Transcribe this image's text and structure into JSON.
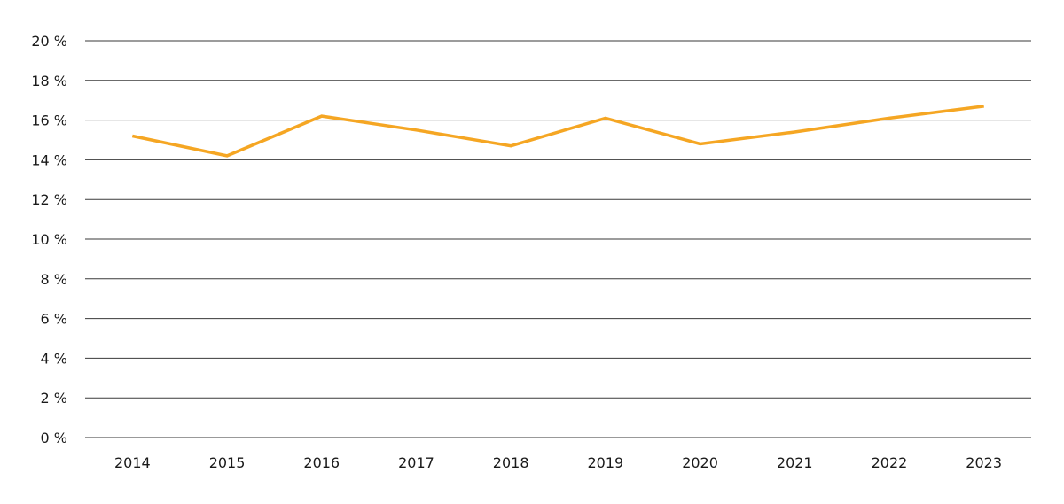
{
  "chart_data": {
    "type": "line",
    "title": "",
    "xlabel": "",
    "ylabel": "",
    "categories": [
      "2014",
      "2015",
      "2016",
      "2017",
      "2018",
      "2019",
      "2020",
      "2021",
      "2022",
      "2023"
    ],
    "series": [
      {
        "name": "",
        "color": "#F5A623",
        "values": [
          15.2,
          14.2,
          16.2,
          15.5,
          14.7,
          16.1,
          14.8,
          15.4,
          16.1,
          16.7
        ]
      }
    ],
    "ylim": [
      0,
      20
    ],
    "yticks": [
      0,
      2,
      4,
      6,
      8,
      10,
      12,
      14,
      16,
      18,
      20
    ],
    "ytick_labels": [
      "0 %",
      "2 %",
      "4 %",
      "6 %",
      "8 %",
      "10 %",
      "12 %",
      "14 %",
      "16 %",
      "18 %",
      "20 %"
    ],
    "grid": true,
    "legend": "none"
  },
  "colors": {
    "line": "#F5A623",
    "grid": "#3a3a3a",
    "text": "#1a1a1a"
  }
}
